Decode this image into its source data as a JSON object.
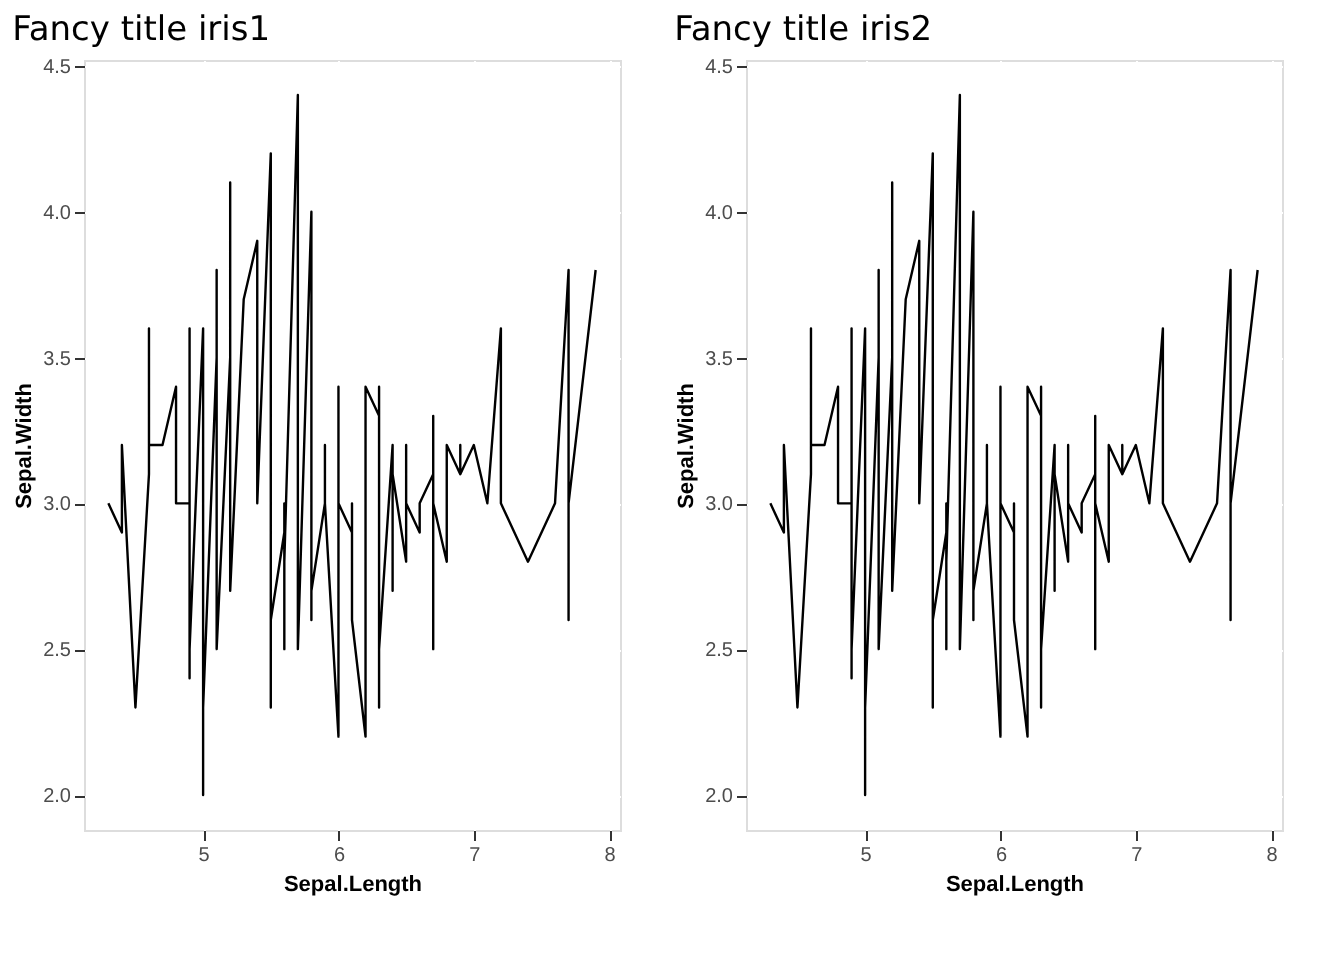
{
  "chart_data": [
    {
      "type": "line",
      "title": "Fancy title iris1",
      "xlabel": "Sepal.Length",
      "ylabel": "Sepal.Width",
      "grid": true,
      "xlim": [
        4.12,
        8.08
      ],
      "ylim": [
        1.88,
        4.52
      ],
      "xticks": [
        5,
        6,
        7,
        8
      ],
      "yticks": [
        {
          "value": 2,
          "label": "2.0"
        },
        {
          "value": 2.5,
          "label": "2.5"
        },
        {
          "value": 3,
          "label": "3.0"
        },
        {
          "value": 3.5,
          "label": "3.5"
        },
        {
          "value": 4,
          "label": "4.0"
        },
        {
          "value": 4.5,
          "label": "4.5"
        }
      ],
      "series": [
        {
          "color": "#000000",
          "x": [
            5.1,
            4.9,
            4.7,
            4.6,
            5.0,
            5.4,
            4.6,
            5.0,
            4.4,
            4.9,
            5.4,
            4.8,
            4.8,
            4.3,
            5.8,
            5.7,
            5.4,
            5.1,
            5.7,
            5.1,
            5.4,
            5.1,
            4.6,
            5.1,
            4.8,
            5.0,
            5.0,
            5.2,
            5.2,
            4.7,
            4.8,
            5.4,
            5.2,
            5.5,
            4.9,
            5.0,
            5.5,
            4.9,
            4.4,
            5.1,
            5.0,
            4.5,
            4.4,
            5.0,
            5.1,
            4.8,
            5.1,
            4.6,
            5.3,
            5.0,
            7.0,
            6.4,
            6.9,
            5.5,
            6.5,
            5.7,
            6.3,
            4.9,
            6.6,
            5.2,
            5.0,
            5.9,
            6.0,
            6.1,
            5.6,
            6.7,
            5.6,
            5.8,
            6.2,
            5.6,
            5.9,
            6.1,
            6.3,
            6.1,
            6.4,
            6.6,
            6.8,
            6.7,
            6.0,
            5.7,
            5.5,
            5.5,
            5.8,
            6.0,
            5.4,
            6.0,
            6.7,
            6.3,
            5.6,
            5.5,
            5.5,
            6.1,
            5.8,
            5.0,
            5.6,
            5.7,
            5.7,
            6.2,
            5.1,
            5.7,
            6.3,
            5.8,
            7.1,
            6.3,
            6.5,
            7.6,
            4.9,
            7.3,
            6.7,
            7.2,
            6.5,
            6.4,
            6.8,
            5.7,
            5.8,
            6.4,
            6.5,
            7.7,
            7.7,
            6.0,
            6.9,
            5.6,
            7.7,
            6.3,
            6.7,
            7.2,
            6.2,
            6.1,
            6.4,
            7.2,
            7.4,
            7.9,
            6.4,
            6.3,
            6.1,
            7.7,
            6.3,
            6.4,
            6.0,
            6.9,
            6.7,
            6.9,
            5.8,
            6.8,
            6.7,
            6.7,
            6.3,
            6.5,
            6.2,
            5.9
          ],
          "values": [
            3.5,
            3.0,
            3.2,
            3.1,
            3.6,
            3.9,
            3.4,
            3.4,
            2.9,
            3.1,
            3.7,
            3.4,
            3.0,
            3.0,
            4.0,
            4.4,
            3.9,
            3.5,
            3.8,
            3.8,
            3.4,
            3.7,
            3.6,
            3.3,
            3.4,
            3.0,
            3.4,
            3.5,
            3.4,
            3.2,
            3.1,
            3.4,
            4.1,
            4.2,
            3.1,
            3.2,
            3.5,
            3.6,
            3.0,
            3.4,
            3.5,
            2.3,
            3.2,
            3.5,
            3.8,
            3.0,
            3.8,
            3.2,
            3.7,
            3.3,
            3.2,
            3.2,
            3.1,
            2.3,
            2.8,
            2.8,
            3.3,
            2.4,
            2.9,
            2.7,
            2.0,
            3.0,
            2.2,
            2.9,
            2.9,
            3.1,
            3.0,
            2.7,
            2.2,
            2.5,
            3.2,
            2.8,
            2.5,
            2.8,
            2.9,
            3.0,
            2.8,
            3.0,
            2.9,
            2.6,
            2.4,
            2.4,
            2.7,
            2.7,
            3.0,
            3.4,
            3.1,
            2.3,
            3.0,
            2.5,
            2.6,
            3.0,
            2.6,
            2.3,
            2.7,
            3.0,
            2.9,
            2.9,
            2.5,
            2.8,
            3.3,
            2.7,
            3.0,
            2.9,
            3.0,
            3.0,
            2.5,
            2.9,
            2.5,
            3.6,
            3.2,
            2.7,
            3.0,
            2.5,
            2.8,
            3.2,
            3.0,
            3.8,
            2.6,
            2.2,
            3.2,
            2.8,
            2.8,
            2.7,
            3.3,
            3.2,
            2.8,
            3.0,
            2.8,
            3.0,
            2.8,
            3.8,
            2.8,
            2.8,
            2.6,
            3.0,
            3.4,
            3.1,
            3.0,
            3.1,
            3.1,
            3.1,
            2.7,
            3.2,
            3.3,
            3.0,
            2.5,
            3.0,
            3.4,
            3.0
          ]
        }
      ]
    },
    {
      "type": "line",
      "title": "Fancy title iris2",
      "xlabel": "Sepal.Length",
      "ylabel": "Sepal.Width",
      "grid": true,
      "xlim": [
        4.12,
        8.08
      ],
      "ylim": [
        1.88,
        4.52
      ],
      "xticks": [
        5,
        6,
        7,
        8
      ],
      "yticks": [
        {
          "value": 2,
          "label": "2.0"
        },
        {
          "value": 2.5,
          "label": "2.5"
        },
        {
          "value": 3,
          "label": "3.0"
        },
        {
          "value": 3.5,
          "label": "3.5"
        },
        {
          "value": 4,
          "label": "4.0"
        },
        {
          "value": 4.5,
          "label": "4.5"
        }
      ],
      "series": [
        {
          "color": "#000000",
          "x": [
            5.1,
            4.9,
            4.7,
            4.6,
            5.0,
            5.4,
            4.6,
            5.0,
            4.4,
            4.9,
            5.4,
            4.8,
            4.8,
            4.3,
            5.8,
            5.7,
            5.4,
            5.1,
            5.7,
            5.1,
            5.4,
            5.1,
            4.6,
            5.1,
            4.8,
            5.0,
            5.0,
            5.2,
            5.2,
            4.7,
            4.8,
            5.4,
            5.2,
            5.5,
            4.9,
            5.0,
            5.5,
            4.9,
            4.4,
            5.1,
            5.0,
            4.5,
            4.4,
            5.0,
            5.1,
            4.8,
            5.1,
            4.6,
            5.3,
            5.0,
            7.0,
            6.4,
            6.9,
            5.5,
            6.5,
            5.7,
            6.3,
            4.9,
            6.6,
            5.2,
            5.0,
            5.9,
            6.0,
            6.1,
            5.6,
            6.7,
            5.6,
            5.8,
            6.2,
            5.6,
            5.9,
            6.1,
            6.3,
            6.1,
            6.4,
            6.6,
            6.8,
            6.7,
            6.0,
            5.7,
            5.5,
            5.5,
            5.8,
            6.0,
            5.4,
            6.0,
            6.7,
            6.3,
            5.6,
            5.5,
            5.5,
            6.1,
            5.8,
            5.0,
            5.6,
            5.7,
            5.7,
            6.2,
            5.1,
            5.7,
            6.3,
            5.8,
            7.1,
            6.3,
            6.5,
            7.6,
            4.9,
            7.3,
            6.7,
            7.2,
            6.5,
            6.4,
            6.8,
            5.7,
            5.8,
            6.4,
            6.5,
            7.7,
            7.7,
            6.0,
            6.9,
            5.6,
            7.7,
            6.3,
            6.7,
            7.2,
            6.2,
            6.1,
            6.4,
            7.2,
            7.4,
            7.9,
            6.4,
            6.3,
            6.1,
            7.7,
            6.3,
            6.4,
            6.0,
            6.9,
            6.7,
            6.9,
            5.8,
            6.8,
            6.7,
            6.7,
            6.3,
            6.5,
            6.2,
            5.9
          ],
          "values": [
            3.5,
            3.0,
            3.2,
            3.1,
            3.6,
            3.9,
            3.4,
            3.4,
            2.9,
            3.1,
            3.7,
            3.4,
            3.0,
            3.0,
            4.0,
            4.4,
            3.9,
            3.5,
            3.8,
            3.8,
            3.4,
            3.7,
            3.6,
            3.3,
            3.4,
            3.0,
            3.4,
            3.5,
            3.4,
            3.2,
            3.1,
            3.4,
            4.1,
            4.2,
            3.1,
            3.2,
            3.5,
            3.6,
            3.0,
            3.4,
            3.5,
            2.3,
            3.2,
            3.5,
            3.8,
            3.0,
            3.8,
            3.2,
            3.7,
            3.3,
            3.2,
            3.2,
            3.1,
            2.3,
            2.8,
            2.8,
            3.3,
            2.4,
            2.9,
            2.7,
            2.0,
            3.0,
            2.2,
            2.9,
            2.9,
            3.1,
            3.0,
            2.7,
            2.2,
            2.5,
            3.2,
            2.8,
            2.5,
            2.8,
            2.9,
            3.0,
            2.8,
            3.0,
            2.9,
            2.6,
            2.4,
            2.4,
            2.7,
            2.7,
            3.0,
            3.4,
            3.1,
            2.3,
            3.0,
            2.5,
            2.6,
            3.0,
            2.6,
            2.3,
            2.7,
            3.0,
            2.9,
            2.9,
            2.5,
            2.8,
            3.3,
            2.7,
            3.0,
            2.9,
            3.0,
            3.0,
            2.5,
            2.9,
            2.5,
            3.6,
            3.2,
            2.7,
            3.0,
            2.5,
            2.8,
            3.2,
            3.0,
            3.8,
            2.6,
            2.2,
            3.2,
            2.8,
            2.8,
            2.7,
            3.3,
            3.2,
            2.8,
            3.0,
            2.8,
            3.0,
            2.8,
            3.8,
            2.8,
            2.8,
            2.6,
            3.0,
            3.4,
            3.1,
            3.0,
            3.1,
            3.1,
            3.1,
            2.7,
            3.2,
            3.3,
            3.0,
            2.5,
            3.0,
            3.4,
            3.0
          ]
        }
      ]
    }
  ]
}
